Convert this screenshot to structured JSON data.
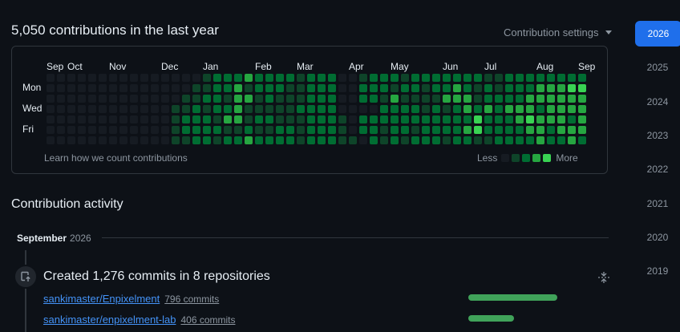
{
  "summary": "5,050 contributions in the last year",
  "settings_label": "Contribution settings",
  "months": [
    "Sep",
    "Oct",
    "Nov",
    "Dec",
    "Jan",
    "Feb",
    "Mar",
    "Apr",
    "May",
    "Jun",
    "Jul",
    "Aug",
    "Sep"
  ],
  "month_cols": [
    0,
    2,
    6,
    11,
    15,
    20,
    24,
    29,
    33,
    38,
    42,
    47,
    51
  ],
  "days": [
    "Mon",
    "Wed",
    "Fri"
  ],
  "learn_text": "Learn how we count contributions",
  "legend": {
    "less": "Less",
    "more": "More"
  },
  "levels_colors": [
    "#161b22",
    "#0e4429",
    "#006d32",
    "#26a641",
    "#39d353"
  ],
  "contributions_grid": [
    "0000000000000001222322221222001222122222221122222222",
    "0000000000000011223122211222002221221223212122233344",
    "0000000000000112213312111222002213111133312222333333",
    "0000000000001121223111112222000022221212323233323333",
    "0000000000001222133122111222102222222222242223433323",
    "0000000000001222211211221222102212212222342222332333",
    "0000000000001122122322221222110212122212211222232232"
  ],
  "activity_title": "Contribution activity",
  "month_heading": {
    "month": "September",
    "year": "2026"
  },
  "created": "Created 1,276 commits in 8 repositories",
  "repos": [
    {
      "name": "sankimaster/Enpixelment",
      "commits": "796 commits",
      "share": 0.624
    },
    {
      "name": "sankimaster/enpixelment-lab",
      "commits": "406 commits",
      "share": 0.318
    }
  ],
  "years": [
    "2026",
    "2025",
    "2024",
    "2023",
    "2022",
    "2021",
    "2020",
    "2019"
  ],
  "active_year": "2026"
}
